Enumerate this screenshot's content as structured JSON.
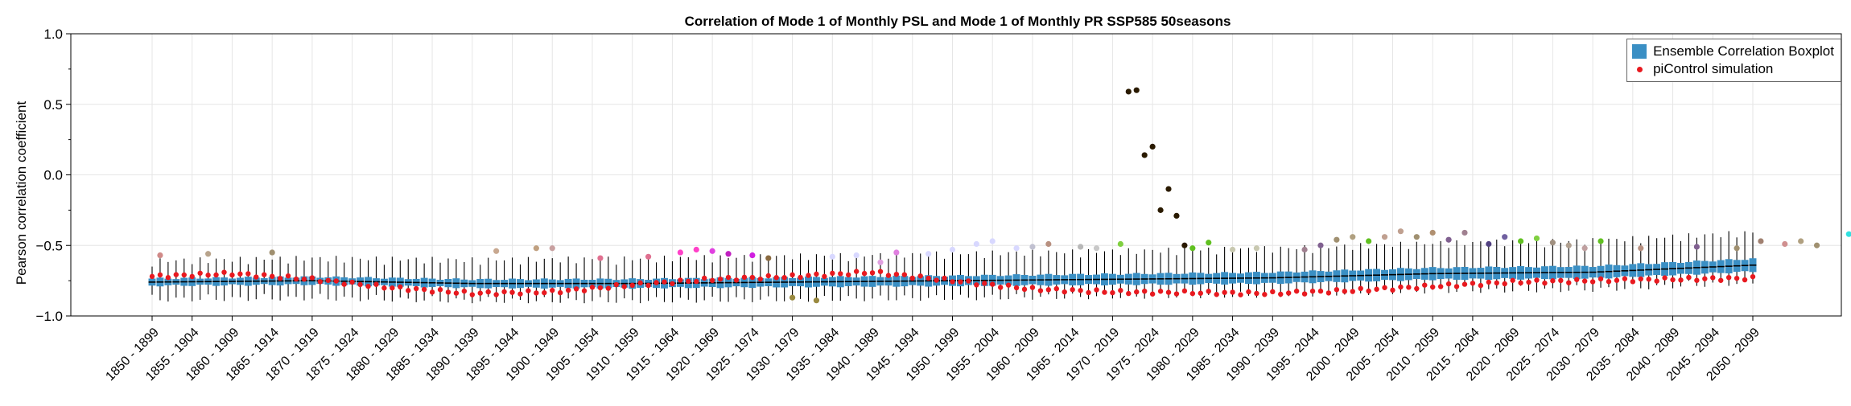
{
  "chart_data": {
    "type": "box",
    "title": "Correlation of Mode 1 of Monthly PSL and Mode 1 of Monthly PR SSP585 50seasons",
    "xlabel": "",
    "ylabel": "Pearson correlation coefficient",
    "ylim": [
      -1.0,
      1.0
    ],
    "yticks": [
      -1.0,
      -0.5,
      0.0,
      0.5,
      1.0
    ],
    "grid": true,
    "legend_position": "top-right",
    "legend": [
      {
        "label": "Ensemble Correlation Boxplot",
        "kind": "box",
        "color": "#3a8fc4"
      },
      {
        "label": "piControl simulation",
        "kind": "point",
        "color": "#e8191f"
      }
    ],
    "start_year": 1850,
    "window_years": 50,
    "n_windows": 201,
    "label_every": 5,
    "median_control_points": [
      [
        1850,
        -0.76
      ],
      [
        1870,
        -0.75
      ],
      [
        1890,
        -0.77
      ],
      [
        1910,
        -0.77
      ],
      [
        1930,
        -0.76
      ],
      [
        1950,
        -0.75
      ],
      [
        1970,
        -0.74
      ],
      [
        1990,
        -0.73
      ],
      [
        2010,
        -0.7
      ],
      [
        2030,
        -0.69
      ],
      [
        2050,
        -0.64
      ],
      [
        2070,
        -0.6
      ],
      [
        2090,
        -0.58
      ],
      [
        2100,
        -0.57
      ]
    ],
    "picontrol_control_points": [
      [
        1850,
        -0.72
      ],
      [
        1860,
        -0.7
      ],
      [
        1870,
        -0.74
      ],
      [
        1880,
        -0.8
      ],
      [
        1890,
        -0.84
      ],
      [
        1900,
        -0.83
      ],
      [
        1910,
        -0.78
      ],
      [
        1920,
        -0.74
      ],
      [
        1930,
        -0.72
      ],
      [
        1940,
        -0.69
      ],
      [
        1950,
        -0.75
      ],
      [
        1960,
        -0.81
      ],
      [
        1970,
        -0.83
      ],
      [
        1990,
        -0.84
      ],
      [
        2000,
        -0.82
      ],
      [
        2010,
        -0.79
      ],
      [
        2020,
        -0.76
      ],
      [
        2040,
        -0.74
      ],
      [
        2070,
        -0.72
      ],
      [
        2090,
        -0.7
      ],
      [
        2100,
        -0.73
      ]
    ],
    "outliers": [
      {
        "x": 1851,
        "y": -0.57,
        "color": "#d08a88"
      },
      {
        "x": 1857,
        "y": -0.56,
        "color": "#b8a48c"
      },
      {
        "x": 1865,
        "y": -0.55,
        "color": "#a09070"
      },
      {
        "x": 1893,
        "y": -0.54,
        "color": "#c8a890"
      },
      {
        "x": 1898,
        "y": -0.52,
        "color": "#c0a080"
      },
      {
        "x": 1900,
        "y": -0.52,
        "color": "#c8a0a0"
      },
      {
        "x": 1906,
        "y": -0.59,
        "color": "#e07090"
      },
      {
        "x": 1912,
        "y": -0.58,
        "color": "#e07090"
      },
      {
        "x": 1916,
        "y": -0.55,
        "color": "#ff40c8"
      },
      {
        "x": 1918,
        "y": -0.53,
        "color": "#ff40c8"
      },
      {
        "x": 1920,
        "y": -0.54,
        "color": "#e040e0"
      },
      {
        "x": 1922,
        "y": -0.56,
        "color": "#c020c0"
      },
      {
        "x": 1925,
        "y": -0.57,
        "color": "#d020e0"
      },
      {
        "x": 1927,
        "y": -0.59,
        "color": "#8a6a40"
      },
      {
        "x": 1930,
        "y": -0.87,
        "color": "#9a8a40"
      },
      {
        "x": 1933,
        "y": -0.89,
        "color": "#9a8a40"
      },
      {
        "x": 1935,
        "y": -0.58,
        "color": "#d8d8ff"
      },
      {
        "x": 1938,
        "y": -0.57,
        "color": "#d8d8ff"
      },
      {
        "x": 1941,
        "y": -0.62,
        "color": "#e0a0e0"
      },
      {
        "x": 1943,
        "y": -0.55,
        "color": "#e080e0"
      },
      {
        "x": 1947,
        "y": -0.56,
        "color": "#d8d8ff"
      },
      {
        "x": 1950,
        "y": -0.53,
        "color": "#d8d8ff"
      },
      {
        "x": 1953,
        "y": -0.49,
        "color": "#d8d8ff"
      },
      {
        "x": 1955,
        "y": -0.47,
        "color": "#d8d8ff"
      },
      {
        "x": 1958,
        "y": -0.52,
        "color": "#d8d8ff"
      },
      {
        "x": 1960,
        "y": -0.51,
        "color": "#c0c0d0"
      },
      {
        "x": 1962,
        "y": -0.49,
        "color": "#b89080"
      },
      {
        "x": 1966,
        "y": -0.51,
        "color": "#b8b8b8"
      },
      {
        "x": 1968,
        "y": -0.52,
        "color": "#c8c8c8"
      },
      {
        "x": 1971,
        "y": -0.49,
        "color": "#80d040"
      },
      {
        "x": 1972,
        "y": 0.59,
        "color": "#2a1a00"
      },
      {
        "x": 1973,
        "y": 0.6,
        "color": "#2a1a00"
      },
      {
        "x": 1974,
        "y": 0.14,
        "color": "#2a1a00"
      },
      {
        "x": 1975,
        "y": 0.2,
        "color": "#2a1a00"
      },
      {
        "x": 1976,
        "y": -0.25,
        "color": "#2a1a00"
      },
      {
        "x": 1977,
        "y": -0.1,
        "color": "#2a1a00"
      },
      {
        "x": 1978,
        "y": -0.29,
        "color": "#2a1a00"
      },
      {
        "x": 1979,
        "y": -0.5,
        "color": "#2a1a00"
      },
      {
        "x": 1980,
        "y": -0.52,
        "color": "#60c020"
      },
      {
        "x": 1982,
        "y": -0.48,
        "color": "#60c020"
      },
      {
        "x": 1985,
        "y": -0.53,
        "color": "#c8c8b0"
      },
      {
        "x": 1988,
        "y": -0.52,
        "color": "#c8c8b0"
      },
      {
        "x": 1994,
        "y": -0.53,
        "color": "#a08090"
      },
      {
        "x": 1996,
        "y": -0.5,
        "color": "#806090"
      },
      {
        "x": 1998,
        "y": -0.46,
        "color": "#a09070"
      },
      {
        "x": 2000,
        "y": -0.44,
        "color": "#b0a080"
      },
      {
        "x": 2002,
        "y": -0.47,
        "color": "#60c020"
      },
      {
        "x": 2004,
        "y": -0.44,
        "color": "#c0a090"
      },
      {
        "x": 2006,
        "y": -0.4,
        "color": "#c0a090"
      },
      {
        "x": 2008,
        "y": -0.44,
        "color": "#a09070"
      },
      {
        "x": 2010,
        "y": -0.41,
        "color": "#b09070"
      },
      {
        "x": 2012,
        "y": -0.46,
        "color": "#806090"
      },
      {
        "x": 2014,
        "y": -0.41,
        "color": "#a08090"
      },
      {
        "x": 2017,
        "y": -0.49,
        "color": "#504080"
      },
      {
        "x": 2019,
        "y": -0.44,
        "color": "#7060a0"
      },
      {
        "x": 2021,
        "y": -0.47,
        "color": "#60c020"
      },
      {
        "x": 2023,
        "y": -0.45,
        "color": "#80d040"
      },
      {
        "x": 2025,
        "y": -0.48,
        "color": "#a09080"
      },
      {
        "x": 2027,
        "y": -0.5,
        "color": "#b0a090"
      },
      {
        "x": 2029,
        "y": -0.52,
        "color": "#c0a0a0"
      },
      {
        "x": 2031,
        "y": -0.47,
        "color": "#60c020"
      },
      {
        "x": 2036,
        "y": -0.52,
        "color": "#b89080"
      },
      {
        "x": 2043,
        "y": -0.51,
        "color": "#806090"
      },
      {
        "x": 2048,
        "y": -0.52,
        "color": "#a09070"
      },
      {
        "x": 2051,
        "y": -0.47,
        "color": "#a08070"
      },
      {
        "x": 2054,
        "y": -0.49,
        "color": "#d09090"
      },
      {
        "x": 2056,
        "y": -0.47,
        "color": "#b0a080"
      },
      {
        "x": 2058,
        "y": -0.5,
        "color": "#a09070"
      },
      {
        "x": 2062,
        "y": -0.42,
        "color": "#30e0e0"
      },
      {
        "x": 2063,
        "y": -0.46,
        "color": "#30e0e0"
      },
      {
        "x": 2069,
        "y": -0.46,
        "color": "#504010"
      },
      {
        "x": 2071,
        "y": -0.39,
        "color": "#a09060"
      },
      {
        "x": 2073,
        "y": -0.38,
        "color": "#a09060"
      },
      {
        "x": 2075,
        "y": -0.36,
        "color": "#b0a070"
      },
      {
        "x": 2077,
        "y": -0.35,
        "color": "#c09080"
      },
      {
        "x": 2079,
        "y": -0.26,
        "color": "#a09060"
      },
      {
        "x": 2081,
        "y": -0.28,
        "color": "#b0a070"
      },
      {
        "x": 2083,
        "y": -0.3,
        "color": "#e06060"
      },
      {
        "x": 2084,
        "y": -0.34,
        "color": "#806060"
      },
      {
        "x": 2085,
        "y": -0.31,
        "color": "#504010"
      },
      {
        "x": 2087,
        "y": -0.26,
        "color": "#c09090"
      },
      {
        "x": 2088,
        "y": -0.24,
        "color": "#e06080"
      },
      {
        "x": 2090,
        "y": -0.27,
        "color": "#e06080"
      },
      {
        "x": 2094,
        "y": -0.24,
        "color": "#ff5060"
      },
      {
        "x": 2080,
        "y": -0.44,
        "color": "#503010"
      }
    ]
  }
}
